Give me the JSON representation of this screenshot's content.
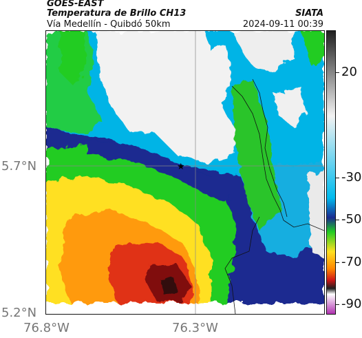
{
  "header": {
    "title": "GOES-EAST",
    "subtitle": "Temperatura de Brillo CH13",
    "credit": "SIATA",
    "caption": "Vía Medellín - Quibdó 50km",
    "timestamp": "2024-09-11 00:39"
  },
  "map": {
    "lat_labels": [
      "5.7°N",
      "5.2°N"
    ],
    "lon_labels": [
      "76.8°W",
      "76.3°W"
    ],
    "marker": "star-marker"
  },
  "colorbar": {
    "tick_labels": [
      "20",
      "-30",
      "-50",
      "-70",
      "-90"
    ],
    "tick_values": [
      20,
      -30,
      -50,
      -70,
      -90
    ],
    "range": [
      -95,
      40
    ],
    "colors": [
      "#b032b0",
      "#ffffff",
      "#202020",
      "#d01818",
      "#ff8800",
      "#ffe020",
      "#22cc22",
      "#1a2a90",
      "#00bbee",
      "#f2f2f2",
      "#202020"
    ]
  }
}
